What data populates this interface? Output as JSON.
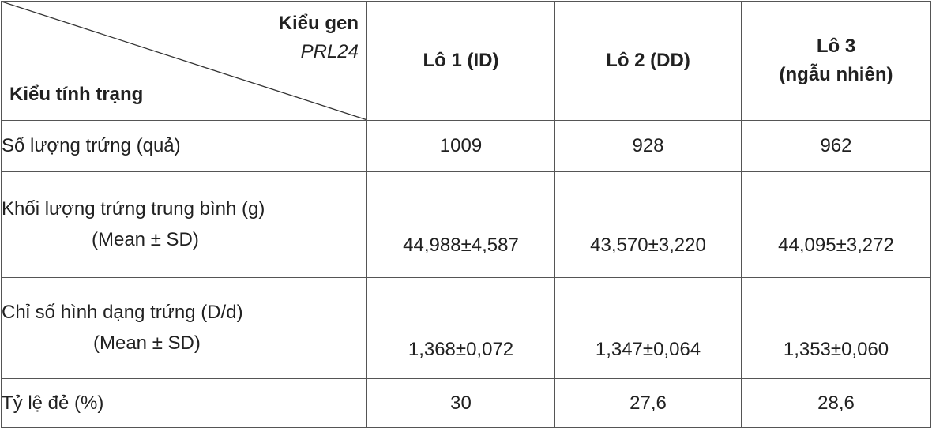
{
  "header": {
    "corner_top_line1": "Kiểu gen",
    "corner_top_line2": "PRL24",
    "corner_bottom": "Kiểu tính trạng",
    "col1": "Lô 1 (ID)",
    "col2": "Lô 2 (DD)",
    "col3_line1": "Lô 3",
    "col3_line2": "(ngẫu nhiên)"
  },
  "rows": [
    {
      "label": "Số lượng trứng (quả)",
      "sub": "",
      "values": [
        "1009",
        "928",
        "962"
      ]
    },
    {
      "label": "Khối lượng trứng trung bình (g)",
      "sub": "(Mean ± SD)",
      "values": [
        "44,988±4,587",
        "43,570±3,220",
        "44,095±3,272"
      ]
    },
    {
      "label": "Chỉ số hình dạng trứng (D/d)",
      "sub": "(Mean ± SD)",
      "values": [
        "1,368±0,072",
        "1,347±0,064",
        "1,353±0,060"
      ]
    },
    {
      "label": "Tỷ lệ đẻ (%)",
      "sub": "",
      "values": [
        "30",
        "27,6",
        "28,6"
      ]
    }
  ]
}
